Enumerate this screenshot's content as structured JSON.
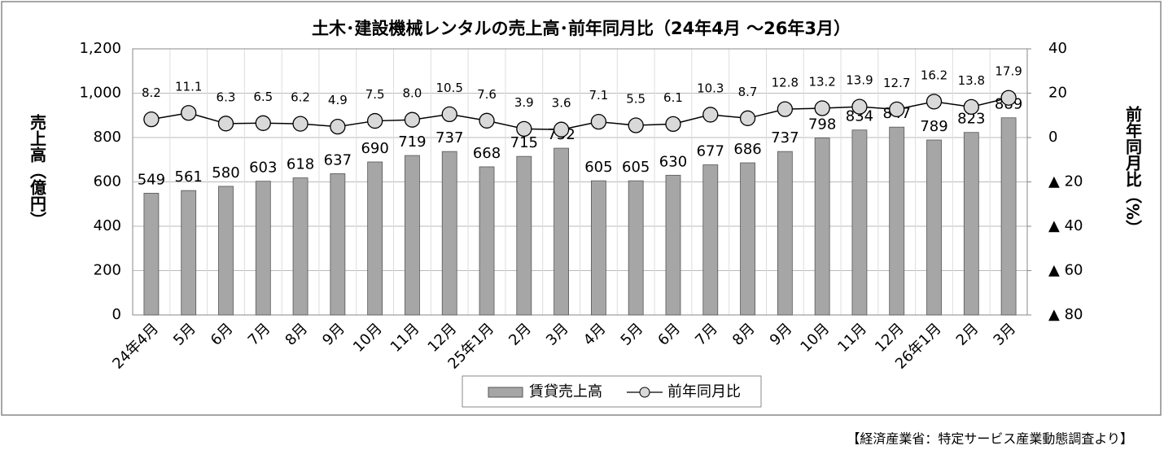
{
  "chart_data": {
    "type": "bar_line",
    "title": "土木･建設機械レンタルの売上高･前年同月比（24年4月 ～26年3月）",
    "y_label": "売上高（億円）",
    "y2_label": "前年同月比（%）",
    "source": "【経済産業省：特定サービス産業動態調査より】",
    "categories": [
      "24年4月",
      "5月",
      "6月",
      "7月",
      "8月",
      "9月",
      "10月",
      "11月",
      "12月",
      "25年1月",
      "2月",
      "3月",
      "4月",
      "5月",
      "6月",
      "7月",
      "8月",
      "9月",
      "10月",
      "11月",
      "12月",
      "26年1月",
      "2月",
      "3月"
    ],
    "series": [
      {
        "name": "賃貸売上高",
        "type": "bar",
        "color": "#a6a6a6",
        "values": [
          549,
          561,
          580,
          603,
          618,
          637,
          690,
          719,
          737,
          668,
          715,
          752,
          605,
          605,
          630,
          677,
          686,
          737,
          798,
          834,
          847,
          789,
          823,
          889
        ]
      },
      {
        "name": "前年同月比",
        "type": "line",
        "axis": "y2",
        "color": "#d9d9d9",
        "values": [
          8.2,
          11.1,
          6.3,
          6.5,
          6.2,
          4.9,
          7.5,
          8.0,
          10.5,
          7.6,
          3.9,
          3.6,
          7.1,
          5.5,
          6.1,
          10.3,
          8.7,
          12.8,
          13.2,
          13.9,
          12.7,
          16.2,
          13.8,
          17.9
        ],
        "value_labels": [
          "8.2",
          "11.1",
          "6.3",
          "6.5",
          "6.2",
          "4.9",
          "7.5",
          "8.0",
          "10.5",
          "7.6",
          "3.9",
          "3.6",
          "7.1",
          "5.5",
          "6.1",
          "10.3",
          "8.7",
          "12.8",
          "13.2",
          "13.9",
          "12.7",
          "16.2",
          "13.8",
          "17.9"
        ]
      }
    ],
    "ylim": [
      0,
      1200
    ],
    "yticks": [
      0,
      200,
      400,
      600,
      800,
      {
        "value": 1000,
        "label": "1,000"
      },
      {
        "value": 1200,
        "label": "1,200"
      }
    ],
    "y2lim": [
      -80,
      40
    ],
    "y2ticks": [
      {
        "value": -80,
        "label": "▲ 80"
      },
      {
        "value": -60,
        "label": "▲ 60"
      },
      {
        "value": -40,
        "label": "▲ 40"
      },
      {
        "value": -20,
        "label": "▲ 20"
      },
      0,
      20,
      40
    ],
    "grid": true,
    "legend": "bottom"
  }
}
